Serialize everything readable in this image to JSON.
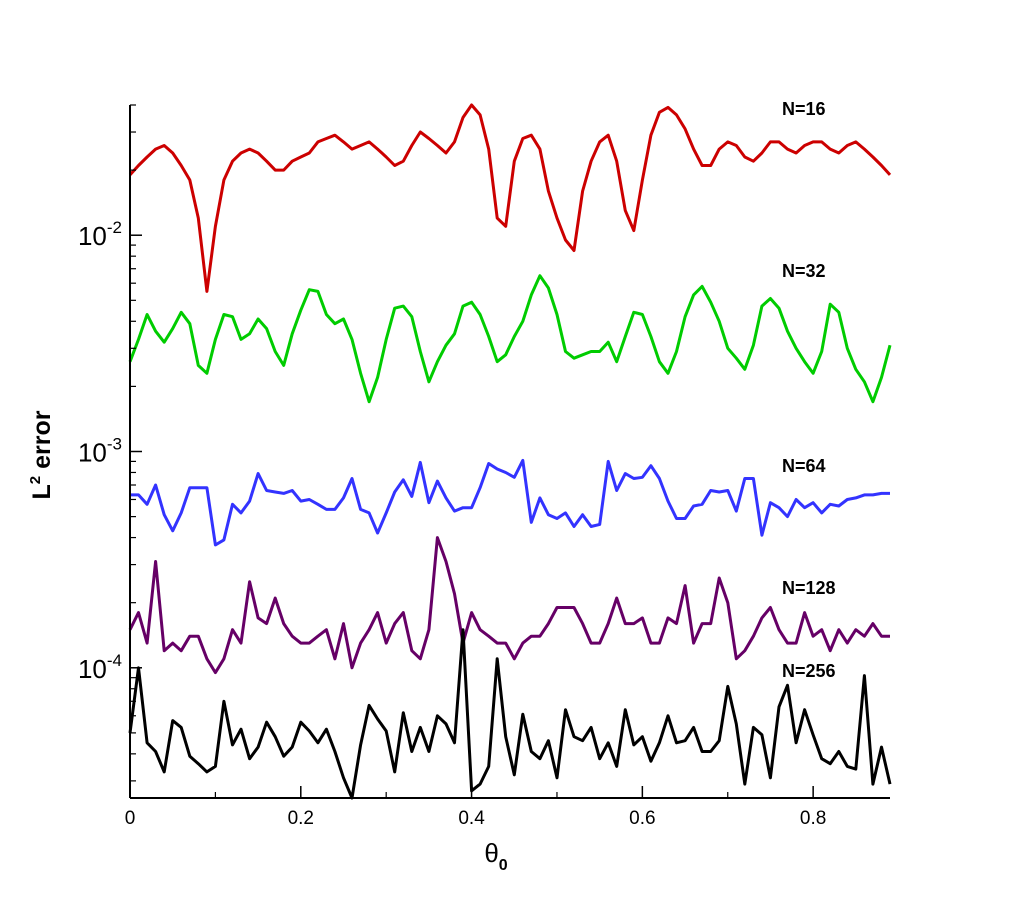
{
  "chart_data": {
    "type": "line",
    "xlabel": "θ",
    "xlabel_sub": "0",
    "ylabel_main": "L",
    "ylabel_sup": "2",
    "ylabel_rest": "error",
    "xlim": [
      0,
      0.89
    ],
    "ylim": [
      2.5e-05,
      0.04
    ],
    "y_scale": "log",
    "xticks": [
      "0",
      "0.2",
      "0.4",
      "0.6",
      "0.8"
    ],
    "yticks": [
      {
        "base": "10",
        "exp": "-4"
      },
      {
        "base": "10",
        "exp": "-3"
      },
      {
        "base": "10",
        "exp": "-2"
      }
    ],
    "x": [
      0,
      0.01,
      0.02,
      0.03,
      0.04,
      0.05,
      0.06,
      0.07,
      0.08,
      0.09,
      0.1,
      0.11,
      0.12,
      0.13,
      0.14,
      0.15,
      0.16,
      0.17,
      0.18,
      0.19,
      0.2,
      0.21,
      0.22,
      0.23,
      0.24,
      0.25,
      0.26,
      0.27,
      0.28,
      0.29,
      0.3,
      0.31,
      0.32,
      0.33,
      0.34,
      0.35,
      0.36,
      0.37,
      0.38,
      0.39,
      0.4,
      0.41,
      0.42,
      0.43,
      0.44,
      0.45,
      0.46,
      0.47,
      0.48,
      0.49,
      0.5,
      0.51,
      0.52,
      0.53,
      0.54,
      0.55,
      0.56,
      0.57,
      0.58,
      0.59,
      0.6,
      0.61,
      0.62,
      0.63,
      0.64,
      0.65,
      0.66,
      0.67,
      0.68,
      0.69,
      0.7,
      0.71,
      0.72,
      0.73,
      0.74,
      0.75,
      0.76,
      0.77,
      0.78,
      0.79,
      0.8,
      0.81,
      0.82,
      0.83,
      0.84,
      0.85,
      0.86,
      0.87,
      0.88,
      0.89
    ],
    "series": [
      {
        "name": "N=16",
        "color": "#cc0000",
        "values": [
          0.019,
          0.021,
          0.023,
          0.025,
          0.026,
          0.024,
          0.021,
          0.018,
          0.012,
          0.0055,
          0.011,
          0.018,
          0.022,
          0.024,
          0.025,
          0.024,
          0.022,
          0.02,
          0.02,
          0.022,
          0.023,
          0.024,
          0.027,
          0.028,
          0.029,
          0.027,
          0.025,
          0.026,
          0.027,
          0.025,
          0.023,
          0.021,
          0.022,
          0.026,
          0.03,
          0.028,
          0.026,
          0.024,
          0.027,
          0.035,
          0.04,
          0.036,
          0.025,
          0.012,
          0.011,
          0.022,
          0.028,
          0.029,
          0.025,
          0.016,
          0.012,
          0.0095,
          0.0085,
          0.016,
          0.022,
          0.027,
          0.029,
          0.022,
          0.013,
          0.0105,
          0.018,
          0.029,
          0.037,
          0.039,
          0.036,
          0.031,
          0.025,
          0.021,
          0.021,
          0.025,
          0.027,
          0.026,
          0.023,
          0.022,
          0.024,
          0.027,
          0.027,
          0.025,
          0.024,
          0.026,
          0.027,
          0.027,
          0.025,
          0.024,
          0.026,
          0.027,
          0.025,
          0.023,
          0.021,
          0.019
        ]
      },
      {
        "name": "N=32",
        "color": "#00cc00",
        "values": [
          0.0026,
          0.0033,
          0.0043,
          0.0036,
          0.0032,
          0.0037,
          0.0044,
          0.0039,
          0.0025,
          0.0023,
          0.0033,
          0.0043,
          0.0042,
          0.0033,
          0.0035,
          0.0041,
          0.0037,
          0.0029,
          0.0025,
          0.0035,
          0.0045,
          0.0056,
          0.0055,
          0.0043,
          0.0039,
          0.0041,
          0.0033,
          0.0023,
          0.0017,
          0.0022,
          0.0033,
          0.0046,
          0.0047,
          0.0042,
          0.0029,
          0.0021,
          0.0026,
          0.0031,
          0.0035,
          0.0047,
          0.0049,
          0.0043,
          0.0034,
          0.0026,
          0.0028,
          0.0034,
          0.004,
          0.0053,
          0.0065,
          0.0057,
          0.0043,
          0.0029,
          0.0027,
          0.0028,
          0.0029,
          0.0029,
          0.0032,
          0.0026,
          0.0034,
          0.0044,
          0.0043,
          0.0034,
          0.0026,
          0.0023,
          0.0029,
          0.0042,
          0.0053,
          0.0058,
          0.0049,
          0.004,
          0.003,
          0.0027,
          0.0024,
          0.0031,
          0.0047,
          0.0051,
          0.0046,
          0.0036,
          0.003,
          0.0026,
          0.0023,
          0.0029,
          0.0048,
          0.0044,
          0.003,
          0.0024,
          0.0021,
          0.0017,
          0.0022,
          0.0031
        ]
      },
      {
        "name": "N=64",
        "color": "#3333ff",
        "values": [
          0.00063,
          0.00063,
          0.00057,
          0.0007,
          0.00051,
          0.00043,
          0.00052,
          0.00068,
          0.00068,
          0.00068,
          0.00037,
          0.00039,
          0.00057,
          0.00052,
          0.00059,
          0.00079,
          0.00066,
          0.00065,
          0.00064,
          0.00066,
          0.00059,
          0.0006,
          0.00057,
          0.00054,
          0.00054,
          0.00061,
          0.00075,
          0.00054,
          0.00052,
          0.00042,
          0.00052,
          0.00065,
          0.00074,
          0.00062,
          0.00089,
          0.00058,
          0.00073,
          0.00061,
          0.00053,
          0.00055,
          0.00055,
          0.00068,
          0.00088,
          0.00083,
          0.0008,
          0.00076,
          0.00091,
          0.00047,
          0.00061,
          0.00051,
          0.00049,
          0.00052,
          0.00045,
          0.00051,
          0.00045,
          0.00046,
          0.0009,
          0.00066,
          0.00079,
          0.00075,
          0.00076,
          0.00086,
          0.00075,
          0.00059,
          0.00049,
          0.00049,
          0.00056,
          0.00057,
          0.00066,
          0.00065,
          0.00066,
          0.00053,
          0.00075,
          0.00075,
          0.00041,
          0.00058,
          0.00055,
          0.0005,
          0.0006,
          0.00055,
          0.00058,
          0.00052,
          0.00057,
          0.00056,
          0.0006,
          0.00061,
          0.00063,
          0.00063,
          0.00064,
          0.00064
        ]
      },
      {
        "name": "N=128",
        "color": "#660066",
        "values": [
          0.00015,
          0.00018,
          0.00013,
          0.00031,
          0.00012,
          0.00013,
          0.00012,
          0.00014,
          0.00014,
          0.00011,
          9.5e-05,
          0.00011,
          0.00015,
          0.00013,
          0.00025,
          0.00017,
          0.00016,
          0.00021,
          0.00016,
          0.00014,
          0.00013,
          0.00013,
          0.00014,
          0.00015,
          0.00011,
          0.00016,
          0.0001,
          0.00013,
          0.00015,
          0.00018,
          0.00013,
          0.00016,
          0.00018,
          0.00012,
          0.00011,
          0.00015,
          0.0004,
          0.00031,
          0.00022,
          0.00013,
          0.00018,
          0.00015,
          0.00014,
          0.00013,
          0.00013,
          0.00011,
          0.00013,
          0.00014,
          0.00014,
          0.00016,
          0.00019,
          0.00019,
          0.00019,
          0.00016,
          0.00013,
          0.00013,
          0.00016,
          0.00021,
          0.00016,
          0.00016,
          0.00017,
          0.00013,
          0.00013,
          0.00017,
          0.00016,
          0.00024,
          0.00013,
          0.00016,
          0.00016,
          0.00026,
          0.0002,
          0.00011,
          0.00012,
          0.00014,
          0.00017,
          0.00019,
          0.00015,
          0.00013,
          0.00013,
          0.00018,
          0.00014,
          0.00015,
          0.00012,
          0.00015,
          0.00013,
          0.00015,
          0.00014,
          0.00016,
          0.00014,
          0.00014
        ]
      },
      {
        "name": "N=256",
        "color": "#000000",
        "values": [
          5e-05,
          0.0001,
          4.5e-05,
          4.1e-05,
          3.3e-05,
          5.7e-05,
          5.3e-05,
          3.9e-05,
          3.6e-05,
          3.3e-05,
          3.5e-05,
          7e-05,
          4.4e-05,
          5.2e-05,
          3.8e-05,
          4.3e-05,
          5.6e-05,
          4.8e-05,
          3.9e-05,
          4.3e-05,
          5.6e-05,
          5.1e-05,
          4.5e-05,
          5.2e-05,
          4.1e-05,
          3.1e-05,
          2.5e-05,
          4.4e-05,
          6.7e-05,
          5.8e-05,
          5.1e-05,
          3.3e-05,
          6.2e-05,
          4.1e-05,
          5.3e-05,
          4.1e-05,
          6e-05,
          5.5e-05,
          4.5e-05,
          0.00015,
          2.7e-05,
          2.9e-05,
          3.5e-05,
          0.00011,
          4.8e-05,
          3.2e-05,
          6.1e-05,
          4.1e-05,
          3.8e-05,
          4.6e-05,
          3.1e-05,
          6.4e-05,
          4.8e-05,
          4.6e-05,
          5.3e-05,
          3.8e-05,
          4.5e-05,
          3.5e-05,
          6.4e-05,
          4.4e-05,
          4.8e-05,
          3.7e-05,
          4.5e-05,
          6e-05,
          4.5e-05,
          4.6e-05,
          5.3e-05,
          4.1e-05,
          4.1e-05,
          4.6e-05,
          8.2e-05,
          5.5e-05,
          2.9e-05,
          5.3e-05,
          4.9e-05,
          3.1e-05,
          6.6e-05,
          8.3e-05,
          4.5e-05,
          6.4e-05,
          4.9e-05,
          3.8e-05,
          3.6e-05,
          4.1e-05,
          3.5e-05,
          3.4e-05,
          9.2e-05,
          2.9e-05,
          4.3e-05,
          2.9e-05
        ]
      }
    ]
  }
}
